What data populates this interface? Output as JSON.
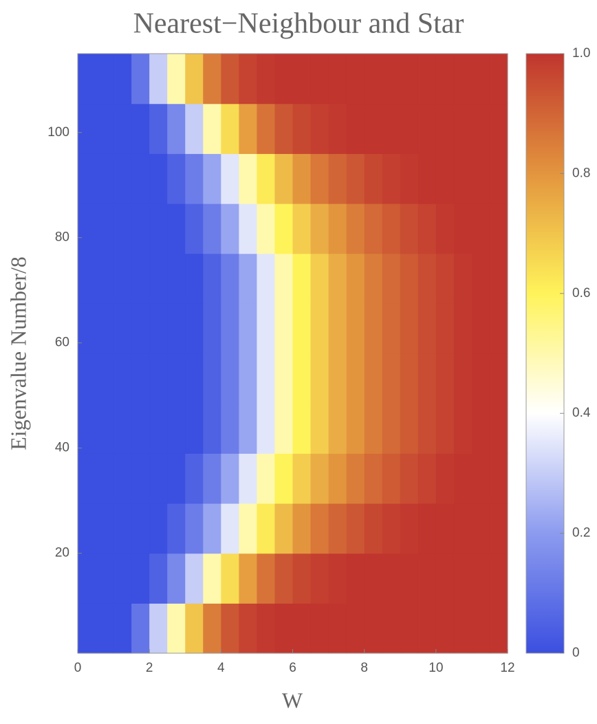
{
  "chart_data": {
    "type": "heatmap",
    "title": "Nearest−Neighbour and Star",
    "x_label": "W",
    "y_label": "Eigenvalue Number/8",
    "x": [
      0.25,
      0.75,
      1.25,
      1.75,
      2.25,
      2.75,
      3.25,
      3.75,
      4.25,
      4.75,
      5.25,
      5.75,
      6.25,
      6.75,
      7.25,
      7.75,
      8.25,
      8.75,
      9.25,
      9.75,
      10.25,
      10.75,
      11.25,
      11.75
    ],
    "y": [
      5.75,
      15.25,
      24.75,
      34.25,
      43.75,
      53.25,
      62.75,
      72.25,
      81.75,
      91.25,
      100.75,
      110.25
    ],
    "z": [
      [
        0,
        0,
        0,
        0.1,
        0.3,
        0.5,
        0.7,
        0.85,
        0.93,
        0.97,
        0.99,
        1,
        1,
        1,
        1,
        1,
        1,
        1,
        1,
        1,
        1,
        1,
        1,
        1
      ],
      [
        0,
        0,
        0,
        0,
        0.05,
        0.15,
        0.3,
        0.5,
        0.65,
        0.78,
        0.87,
        0.93,
        0.96,
        0.98,
        0.99,
        1,
        1,
        1,
        1,
        1,
        1,
        1,
        1,
        1
      ],
      [
        0,
        0,
        0,
        0,
        0,
        0.05,
        0.12,
        0.22,
        0.35,
        0.5,
        0.62,
        0.72,
        0.8,
        0.86,
        0.9,
        0.93,
        0.96,
        0.98,
        0.99,
        1,
        1,
        1,
        1,
        1
      ],
      [
        0,
        0,
        0,
        0,
        0,
        0,
        0.05,
        0.12,
        0.22,
        0.35,
        0.5,
        0.6,
        0.68,
        0.75,
        0.8,
        0.85,
        0.89,
        0.92,
        0.95,
        0.97,
        0.99,
        1,
        1,
        1
      ],
      [
        0,
        0,
        0,
        0,
        0,
        0,
        0,
        0.05,
        0.12,
        0.22,
        0.35,
        0.5,
        0.6,
        0.68,
        0.75,
        0.8,
        0.85,
        0.89,
        0.92,
        0.95,
        0.97,
        0.99,
        1,
        1
      ],
      [
        0,
        0,
        0,
        0,
        0,
        0,
        0,
        0.05,
        0.12,
        0.22,
        0.35,
        0.5,
        0.6,
        0.68,
        0.75,
        0.8,
        0.85,
        0.89,
        0.92,
        0.95,
        0.97,
        0.99,
        1,
        1
      ],
      [
        0,
        0,
        0,
        0,
        0,
        0,
        0,
        0.05,
        0.12,
        0.22,
        0.35,
        0.5,
        0.6,
        0.68,
        0.75,
        0.8,
        0.85,
        0.89,
        0.92,
        0.95,
        0.97,
        0.99,
        1,
        1
      ],
      [
        0,
        0,
        0,
        0,
        0,
        0,
        0,
        0.05,
        0.12,
        0.22,
        0.35,
        0.5,
        0.6,
        0.68,
        0.75,
        0.8,
        0.85,
        0.89,
        0.92,
        0.95,
        0.97,
        0.99,
        1,
        1
      ],
      [
        0,
        0,
        0,
        0,
        0,
        0,
        0.05,
        0.12,
        0.22,
        0.35,
        0.5,
        0.6,
        0.68,
        0.75,
        0.8,
        0.85,
        0.89,
        0.92,
        0.95,
        0.97,
        0.99,
        1,
        1,
        1
      ],
      [
        0,
        0,
        0,
        0,
        0,
        0.05,
        0.12,
        0.22,
        0.35,
        0.5,
        0.62,
        0.72,
        0.8,
        0.86,
        0.9,
        0.93,
        0.96,
        0.98,
        0.99,
        1,
        1,
        1,
        1,
        1
      ],
      [
        0,
        0,
        0,
        0,
        0.05,
        0.15,
        0.3,
        0.5,
        0.65,
        0.78,
        0.87,
        0.93,
        0.96,
        0.98,
        0.99,
        1,
        1,
        1,
        1,
        1,
        1,
        1,
        1,
        1
      ],
      [
        0,
        0,
        0,
        0.1,
        0.3,
        0.5,
        0.7,
        0.85,
        0.93,
        0.97,
        0.99,
        1,
        1,
        1,
        1,
        1,
        1,
        1,
        1,
        1,
        1,
        1,
        1,
        1
      ]
    ],
    "xlim": [
      0,
      12
    ],
    "ylim": [
      1,
      115
    ],
    "zlim": [
      0,
      1
    ],
    "xticks": [
      0,
      2,
      4,
      6,
      8,
      10,
      12
    ],
    "yticks": [
      20,
      40,
      60,
      80,
      100
    ],
    "zticks": [
      0,
      0.2,
      0.4,
      0.6,
      0.8,
      {
        "value": 1,
        "label": "1.0"
      }
    ],
    "colormap": [
      "#3b4fe0",
      "#8c9bef",
      "#ffffff",
      "#fff35a",
      "#e3953e",
      "#c0352e"
    ]
  }
}
